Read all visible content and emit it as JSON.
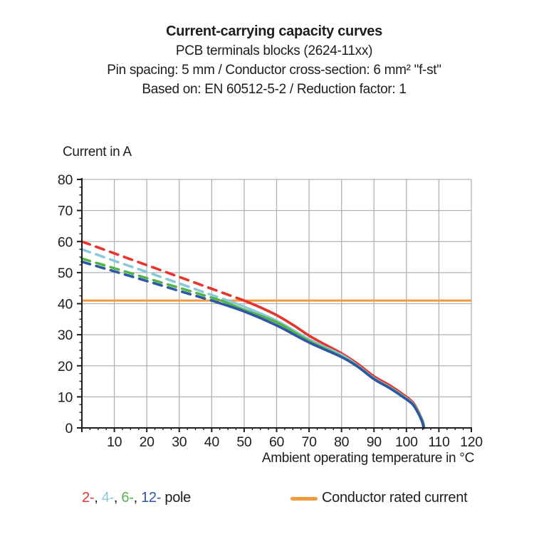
{
  "title": {
    "line1": "Current-carrying capacity curves",
    "line2": "PCB terminals blocks (2624-11xx)",
    "line3": "Pin spacing: 5 mm / Conductor cross-section: 6 mm² \"f-st\"",
    "line4": "Based on: EN 60512-5-2 / Reduction factor: 1"
  },
  "chart_data": {
    "type": "line",
    "title": "Current-carrying capacity curves",
    "xlabel": "Ambient operating temperature in °C",
    "ylabel": "Current in A",
    "xlim": [
      0,
      120
    ],
    "ylim": [
      0,
      80
    ],
    "x_ticks": [
      10,
      20,
      30,
      40,
      50,
      60,
      70,
      80,
      90,
      100,
      110,
      120
    ],
    "y_ticks": [
      0,
      10,
      20,
      30,
      40,
      50,
      60,
      70,
      80
    ],
    "x_minor_step": 2.5,
    "y_minor_step": 2.5,
    "grid": true,
    "grid_color": "#b2b2b2",
    "axis_color": "#1d1d1b",
    "rated_current": {
      "label": "Conductor rated current",
      "value": 41,
      "color": "#f39a3d"
    },
    "series": [
      {
        "name": "2-pole",
        "legend": "2-",
        "color": "#e5352e",
        "style": "dashed-then-solid",
        "solid_from_x": 50,
        "points": [
          [
            0,
            60
          ],
          [
            10,
            56.2
          ],
          [
            20,
            52.4
          ],
          [
            30,
            48.6
          ],
          [
            40,
            44.8
          ],
          [
            50,
            41
          ],
          [
            55,
            38.8
          ],
          [
            60,
            36.3
          ],
          [
            65,
            33.2
          ],
          [
            70,
            29.7
          ],
          [
            75,
            26.8
          ],
          [
            80,
            24
          ],
          [
            85,
            20.6
          ],
          [
            90,
            16.6
          ],
          [
            95,
            13.6
          ],
          [
            100,
            10
          ],
          [
            102,
            8.2
          ],
          [
            103.5,
            5.6
          ],
          [
            104.8,
            2.6
          ],
          [
            105.3,
            0
          ]
        ]
      },
      {
        "name": "4-pole",
        "legend": "4-",
        "color": "#8ac9da",
        "style": "dashed-then-solid",
        "solid_from_x": 45,
        "points": [
          [
            0,
            57.5
          ],
          [
            10,
            53.8
          ],
          [
            20,
            50.2
          ],
          [
            30,
            46.5
          ],
          [
            40,
            42.8
          ],
          [
            45,
            41
          ],
          [
            50,
            39
          ],
          [
            60,
            34.5
          ],
          [
            70,
            28.5
          ],
          [
            80,
            23.5
          ],
          [
            85,
            20
          ],
          [
            90,
            16
          ],
          [
            95,
            13
          ],
          [
            100,
            9.5
          ],
          [
            102,
            7.8
          ],
          [
            103.5,
            5.3
          ],
          [
            104.9,
            2.4
          ],
          [
            105.4,
            0
          ]
        ]
      },
      {
        "name": "6-pole",
        "legend": "6-",
        "color": "#54b348",
        "style": "dashed-then-solid",
        "solid_from_x": 43,
        "points": [
          [
            0,
            54.5
          ],
          [
            10,
            51.4
          ],
          [
            20,
            48.2
          ],
          [
            30,
            45.1
          ],
          [
            40,
            41.9
          ],
          [
            43,
            41
          ],
          [
            50,
            38
          ],
          [
            60,
            34
          ],
          [
            70,
            28
          ],
          [
            80,
            23
          ],
          [
            85,
            19.8
          ],
          [
            90,
            15.8
          ],
          [
            95,
            12.8
          ],
          [
            100,
            9.3
          ],
          [
            102,
            7.6
          ],
          [
            103.5,
            5.1
          ],
          [
            105,
            2.2
          ],
          [
            105.5,
            0
          ]
        ]
      },
      {
        "name": "12-pole",
        "legend": "12-",
        "color": "#2d56a7",
        "style": "dashed-then-solid",
        "solid_from_x": 40,
        "points": [
          [
            0,
            53.5
          ],
          [
            10,
            50.4
          ],
          [
            20,
            47.3
          ],
          [
            30,
            44.1
          ],
          [
            40,
            41
          ],
          [
            50,
            37.5
          ],
          [
            60,
            33
          ],
          [
            70,
            27.5
          ],
          [
            80,
            22.8
          ],
          [
            85,
            19.7
          ],
          [
            90,
            15.7
          ],
          [
            95,
            12.7
          ],
          [
            100,
            9.2
          ],
          [
            102,
            7.5
          ],
          [
            103.5,
            5
          ],
          [
            104.8,
            2.1
          ],
          [
            105.3,
            0
          ]
        ]
      }
    ]
  },
  "legend": {
    "pole": {
      "items": [
        {
          "label": "2-",
          "color": "#e5352e"
        },
        {
          "label": "4-",
          "color": "#8ac9da"
        },
        {
          "label": "6-",
          "color": "#54b348"
        },
        {
          "label": "12-",
          "color": "#2d56a7"
        }
      ],
      "separator": ", ",
      "suffix": " pole",
      "text_color": "#1d1d1b"
    },
    "rated": {
      "label": "Conductor rated current",
      "color": "#f39a3d"
    }
  }
}
